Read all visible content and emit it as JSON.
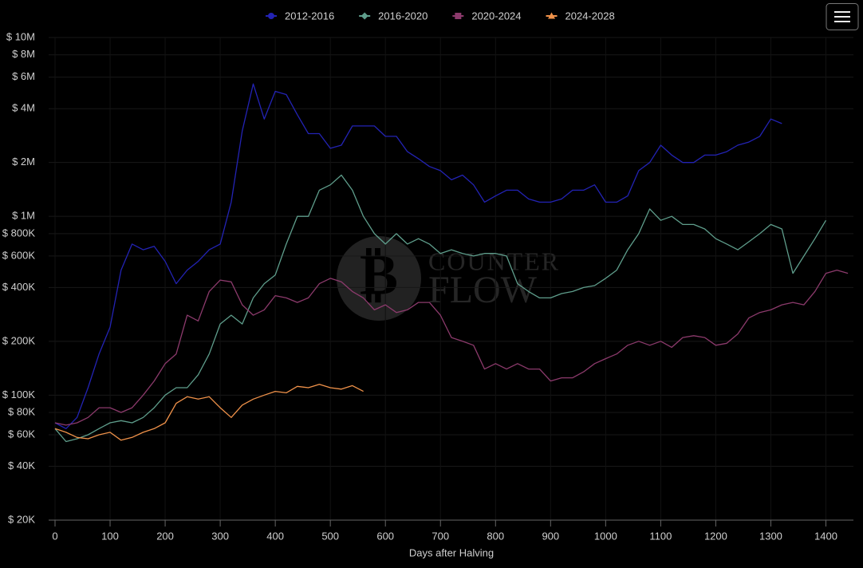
{
  "chart_data": {
    "type": "line",
    "x_label": "Days after Halving",
    "log_y": true,
    "grid": true,
    "legend": "top",
    "watermark": [
      "COUNTER",
      "FLOW"
    ],
    "xlim": [
      0,
      1450
    ],
    "xticks": [
      0,
      100,
      200,
      300,
      400,
      500,
      600,
      700,
      800,
      900,
      1000,
      1100,
      1200,
      1300,
      1400
    ],
    "ylim": [
      20000,
      10000000
    ],
    "yticks": [
      {
        "value": 20000,
        "label": "$ 20K"
      },
      {
        "value": 40000,
        "label": "$ 40K"
      },
      {
        "value": 60000,
        "label": "$ 60K"
      },
      {
        "value": 80000,
        "label": "$ 80K"
      },
      {
        "value": 100000,
        "label": "$ 100K"
      },
      {
        "value": 200000,
        "label": "$ 200K"
      },
      {
        "value": 400000,
        "label": "$ 400K"
      },
      {
        "value": 600000,
        "label": "$ 600K"
      },
      {
        "value": 800000,
        "label": "$ 800K"
      },
      {
        "value": 1000000,
        "label": "$ 1M"
      },
      {
        "value": 2000000,
        "label": "$ 2M"
      },
      {
        "value": 4000000,
        "label": "$ 4M"
      },
      {
        "value": 6000000,
        "label": "$ 6M"
      },
      {
        "value": 8000000,
        "label": "$ 8M"
      },
      {
        "value": 10000000,
        "label": "$ 10M"
      }
    ],
    "x": [
      0,
      20,
      40,
      60,
      80,
      100,
      120,
      140,
      160,
      180,
      200,
      220,
      240,
      260,
      280,
      300,
      320,
      340,
      360,
      380,
      400,
      420,
      440,
      460,
      480,
      500,
      520,
      540,
      560,
      580,
      600,
      620,
      640,
      660,
      680,
      700,
      720,
      740,
      760,
      780,
      800,
      820,
      840,
      860,
      880,
      900,
      920,
      940,
      960,
      980,
      1000,
      1020,
      1040,
      1060,
      1080,
      1100,
      1120,
      1140,
      1160,
      1180,
      1200,
      1220,
      1240,
      1260,
      1280,
      1300,
      1320,
      1340,
      1360,
      1380,
      1400,
      1420,
      1440
    ],
    "series": [
      {
        "name": "2012-2016",
        "color": "#2323b4",
        "marker": "circle",
        "values": [
          70000,
          65000,
          75000,
          110000,
          170000,
          240000,
          500000,
          700000,
          650000,
          680000,
          560000,
          420000,
          500000,
          560000,
          650000,
          700000,
          1200000,
          3000000,
          5500000,
          3500000,
          5000000,
          4800000,
          3700000,
          2900000,
          2900000,
          2400000,
          2500000,
          3200000,
          3200000,
          3200000,
          2800000,
          2800000,
          2300000,
          2100000,
          1900000,
          1800000,
          1600000,
          1700000,
          1500000,
          1200000,
          1300000,
          1400000,
          1400000,
          1250000,
          1200000,
          1200000,
          1250000,
          1400000,
          1400000,
          1500000,
          1200000,
          1200000,
          1300000,
          1800000,
          2000000,
          2500000,
          2200000,
          2000000,
          2000000,
          2200000,
          2200000,
          2300000,
          2500000,
          2600000,
          2800000,
          3500000,
          3300000,
          null,
          null,
          null,
          null,
          null,
          null
        ]
      },
      {
        "name": "2016-2020",
        "color": "#5f9e8c",
        "marker": "diamond",
        "values": [
          65000,
          55000,
          57000,
          60000,
          65000,
          70000,
          72000,
          70000,
          75000,
          85000,
          100000,
          110000,
          110000,
          130000,
          170000,
          250000,
          280000,
          250000,
          350000,
          420000,
          470000,
          700000,
          1000000,
          1000000,
          1400000,
          1500000,
          1700000,
          1400000,
          1000000,
          800000,
          700000,
          800000,
          700000,
          750000,
          700000,
          620000,
          650000,
          620000,
          600000,
          620000,
          620000,
          600000,
          420000,
          380000,
          350000,
          350000,
          370000,
          380000,
          400000,
          410000,
          450000,
          500000,
          650000,
          800000,
          1100000,
          950000,
          1000000,
          900000,
          900000,
          850000,
          750000,
          700000,
          650000,
          720000,
          800000,
          900000,
          850000,
          480000,
          600000,
          750000,
          950000,
          null,
          null
        ]
      },
      {
        "name": "2020-2024",
        "color": "#8c3a6c",
        "marker": "square",
        "values": [
          70000,
          68000,
          70000,
          75000,
          85000,
          85000,
          80000,
          85000,
          100000,
          120000,
          150000,
          170000,
          280000,
          260000,
          380000,
          440000,
          430000,
          320000,
          280000,
          300000,
          360000,
          350000,
          330000,
          350000,
          420000,
          450000,
          430000,
          380000,
          350000,
          300000,
          320000,
          290000,
          300000,
          330000,
          330000,
          280000,
          210000,
          200000,
          190000,
          140000,
          150000,
          140000,
          150000,
          140000,
          140000,
          120000,
          125000,
          125000,
          135000,
          150000,
          160000,
          170000,
          190000,
          200000,
          190000,
          200000,
          185000,
          210000,
          215000,
          210000,
          190000,
          195000,
          220000,
          270000,
          290000,
          300000,
          320000,
          330000,
          320000,
          380000,
          480000,
          500000,
          480000
        ]
      },
      {
        "name": "2024-2028",
        "color": "#f0924a",
        "marker": "triangle",
        "values": [
          65000,
          62000,
          58000,
          57000,
          60000,
          62000,
          56000,
          58000,
          62000,
          65000,
          70000,
          90000,
          98000,
          95000,
          98000,
          85000,
          75000,
          88000,
          95000,
          100000,
          105000,
          103000,
          112000,
          110000,
          115000,
          110000,
          108000,
          113000,
          105000,
          null,
          null,
          null,
          null,
          null,
          null,
          null,
          null,
          null,
          null,
          null,
          null,
          null,
          null,
          null,
          null,
          null,
          null,
          null,
          null,
          null,
          null,
          null,
          null,
          null,
          null,
          null,
          null,
          null,
          null,
          null,
          null,
          null,
          null,
          null,
          null,
          null,
          null,
          null,
          null,
          null,
          null,
          null,
          null
        ]
      }
    ]
  }
}
